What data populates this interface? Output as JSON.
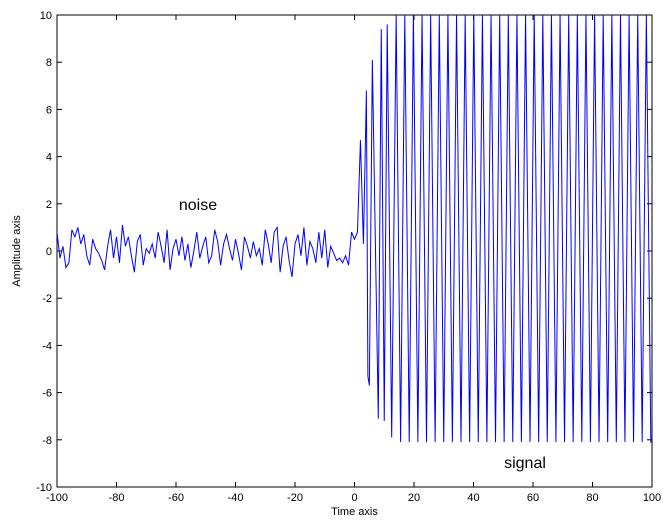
{
  "chart_data": {
    "type": "line",
    "x_label": "Time axis",
    "y_label": "Amplitude axis",
    "annotations": [
      "noise",
      "signal"
    ],
    "xlim": [
      -100,
      100
    ],
    "ylim": [
      -10,
      10
    ],
    "xticks": [
      -100,
      -80,
      -60,
      -40,
      -20,
      0,
      20,
      40,
      60,
      80,
      100
    ],
    "yticks": [
      -10,
      -8,
      -6,
      -4,
      -2,
      0,
      2,
      4,
      6,
      8,
      10
    ],
    "grid": false,
    "x": [
      -100,
      -99,
      -98,
      -97,
      -96,
      -95,
      -94,
      -93,
      -92,
      -91,
      -90,
      -89,
      -88,
      -87,
      -86,
      -85,
      -84,
      -83,
      -82,
      -81,
      -80,
      -79,
      -78,
      -77,
      -76,
      -75,
      -74,
      -73,
      -72,
      -71,
      -70,
      -69,
      -68,
      -67,
      -66,
      -65,
      -64,
      -63,
      -62,
      -61,
      -60,
      -59,
      -58,
      -57,
      -56,
      -55,
      -54,
      -53,
      -52,
      -51,
      -50,
      -49,
      -48,
      -47,
      -46,
      -45,
      -44,
      -43,
      -42,
      -41,
      -40,
      -39,
      -38,
      -37,
      -36,
      -35,
      -34,
      -33,
      -32,
      -31,
      -30,
      -29,
      -28,
      -27,
      -26,
      -25,
      -24,
      -23,
      -22,
      -21,
      -20,
      -19,
      -18,
      -17,
      -16,
      -15,
      -14,
      -13,
      -12,
      -11,
      -10,
      -9,
      -8,
      -7,
      -6,
      -5,
      -4,
      -3,
      -2,
      -1,
      0,
      1,
      2,
      3,
      4,
      4.5,
      5,
      6,
      8,
      9,
      10,
      11,
      12.5,
      14,
      15.5,
      16.9,
      18.4,
      19.8,
      21.3,
      22.7,
      24.2,
      25.6,
      27.1,
      28.5,
      30,
      31.4,
      32.9,
      34.3,
      35.8,
      37.2,
      38.7,
      40.1,
      41.6,
      43,
      44.5,
      45.9,
      47.4,
      48.8,
      50.3,
      51.7,
      53.2,
      54.6,
      56.1,
      57.5,
      59,
      60.4,
      61.9,
      63.3,
      64.8,
      66.2,
      67.7,
      69.1,
      70.6,
      72,
      73.5,
      74.9,
      76.4,
      77.8,
      79.3,
      80.7,
      82.2,
      83.6,
      85.1,
      86.5,
      88,
      89.4,
      90.9,
      92.3,
      93.8,
      95.2,
      96.7,
      98.1,
      99.6,
      100
    ],
    "series": [
      {
        "color": "#0000ff",
        "values": [
          0.8,
          -0.3,
          0.2,
          -0.7,
          -0.5,
          0.9,
          0.6,
          1.0,
          0.3,
          0.7,
          -0.2,
          -0.6,
          0.5,
          0.1,
          -0.1,
          -0.4,
          -0.8,
          0.2,
          0.9,
          -0.3,
          0.6,
          -0.5,
          1.1,
          0.2,
          0.6,
          -0.2,
          -0.9,
          0.4,
          0.7,
          -0.6,
          0.1,
          -0.1,
          0.3,
          -0.3,
          0.8,
          0.2,
          -0.5,
          0.9,
          -0.8,
          0.1,
          0.5,
          -0.2,
          0.6,
          -0.4,
          0.3,
          -0.7,
          0.0,
          0.8,
          -0.3,
          0.2,
          0.6,
          -0.5,
          -0.2,
          0.9,
          0.4,
          -0.6,
          0.3,
          0.7,
          0.1,
          -0.4,
          0.5,
          -0.1,
          -0.8,
          0.6,
          0.2,
          -0.3,
          0.4,
          -0.2,
          0.1,
          -0.6,
          0.9,
          0.3,
          -0.5,
          0.8,
          1.0,
          -0.9,
          0.2,
          0.6,
          -0.4,
          -1.1,
          0.3,
          0.7,
          -0.2,
          1.0,
          -0.6,
          0.4,
          0.1,
          -0.5,
          0.8,
          -0.3,
          0.9,
          -0.7,
          0.2,
          -0.1,
          -0.4,
          -0.3,
          -0.5,
          -0.2,
          -0.6,
          0.8,
          0.5,
          0.8,
          4.7,
          0.3,
          6.8,
          -5.3,
          -5.7,
          8.1,
          -7.1,
          9.4,
          -7.2,
          9.6,
          -7.9,
          10,
          -8.1,
          10,
          -8.1,
          10,
          -8.1,
          10,
          -8.1,
          10,
          -8.1,
          10,
          -8.1,
          10,
          -8.1,
          10,
          -8.1,
          10,
          -8.1,
          10,
          -8.1,
          10,
          -8.1,
          10,
          -8.1,
          10,
          -8.1,
          10,
          -8.1,
          10,
          -8.1,
          10,
          -8.1,
          10,
          -8.1,
          10,
          -8.1,
          10,
          -8.1,
          10,
          -8.1,
          10,
          -8.1,
          10,
          -8.1,
          10,
          -8.1,
          10,
          -8.1,
          10,
          -8.1,
          10,
          -8.1,
          10,
          -8.1,
          10,
          -8.1,
          10,
          -8.1,
          10,
          -8.1,
          -8.1
        ]
      }
    ]
  }
}
